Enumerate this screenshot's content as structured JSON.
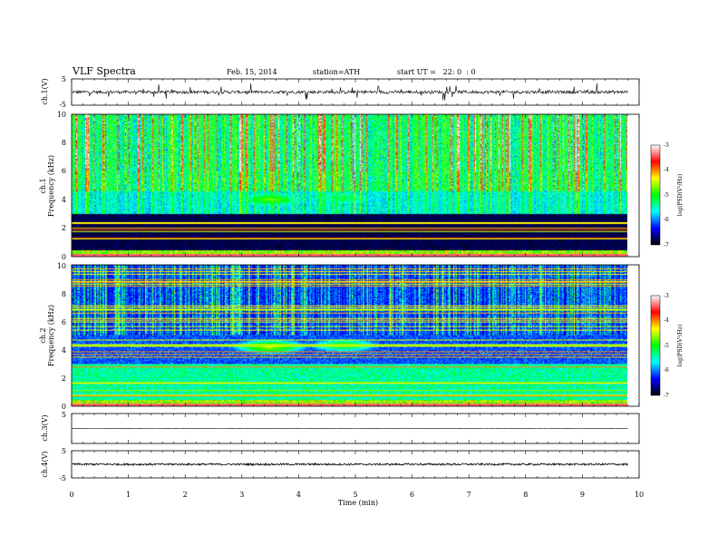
{
  "header": {
    "title": "VLF Spectra",
    "date": "Feb. 15, 2014",
    "station": "station=ATH",
    "start": "start UT =   22: 0  : 0"
  },
  "colors": {
    "colormap": [
      "#000000",
      "#0000ff",
      "#00ffff",
      "#00ff00",
      "#ffff00",
      "#ff0000",
      "#ffffff"
    ],
    "trace": "#000000"
  },
  "chart_data": [
    {
      "type": "line",
      "name": "channel-1-waveform",
      "ylabel": "ch.1(V)",
      "ylim": [
        -5,
        5
      ],
      "yticks": [
        "5",
        "-5"
      ],
      "xlim": [
        0,
        10
      ],
      "baseline": 0,
      "noise_level": 0.6
    },
    {
      "type": "heatmap",
      "name": "channel-1-spectrogram",
      "ylabel": "ch.1\nFrequency (kHz)",
      "ylim": [
        0,
        10
      ],
      "yticks": [
        "0",
        "2",
        "4",
        "6",
        "8",
        "10"
      ],
      "xlim": [
        0,
        10
      ],
      "data_end_min": 9.8,
      "colorbar": {
        "label": "log(PSD(V²/Hz)",
        "range": [
          -7,
          -3
        ],
        "ticks": [
          "-3",
          "-4",
          "-5",
          "-6",
          "-7"
        ]
      },
      "hiss_bursts": [
        {
          "t_center_min": 3.5,
          "f_center_khz": 4.0,
          "log_psd": -4.8
        },
        {
          "t_center_min": 4.8,
          "f_center_khz": 4.1,
          "log_psd": -5.2
        }
      ]
    },
    {
      "type": "heatmap",
      "name": "channel-2-spectrogram",
      "ylabel": "ch.2\nFrequency (kHz)",
      "ylim": [
        0,
        10
      ],
      "yticks": [
        "0",
        "2",
        "4",
        "6",
        "8",
        "10"
      ],
      "xlim": [
        0,
        10
      ],
      "data_end_min": 9.8,
      "colorbar": {
        "label": "log(PSD(V²/Hz)",
        "range": [
          -7,
          -3
        ],
        "ticks": [
          "-3",
          "-4",
          "-5",
          "-6",
          "-7"
        ]
      },
      "hiss_bursts": [
        {
          "t_center_min": 3.5,
          "f_center_khz": 4.2,
          "log_psd": -4.6
        },
        {
          "t_center_min": 4.8,
          "f_center_khz": 4.3,
          "log_psd": -5.0
        }
      ]
    },
    {
      "type": "line",
      "name": "channel-3-waveform",
      "ylabel": "ch.3(V)",
      "ylim": [
        -5,
        5
      ],
      "yticks": [
        "5"
      ],
      "xlim": [
        0,
        10
      ],
      "baseline": 0,
      "noise_level": 0.05
    },
    {
      "type": "line",
      "name": "channel-4-waveform",
      "ylabel": "ch.4(V)",
      "ylim": [
        -5,
        5
      ],
      "yticks": [
        "5",
        "-5"
      ],
      "xlim": [
        0,
        10
      ],
      "baseline": 0,
      "noise_level": 0.35
    }
  ],
  "time_axis": {
    "label": "Time (min)",
    "range": [
      0,
      10
    ],
    "ticks": [
      "0",
      "1",
      "2",
      "3",
      "4",
      "5",
      "6",
      "7",
      "8",
      "9",
      "10"
    ]
  }
}
